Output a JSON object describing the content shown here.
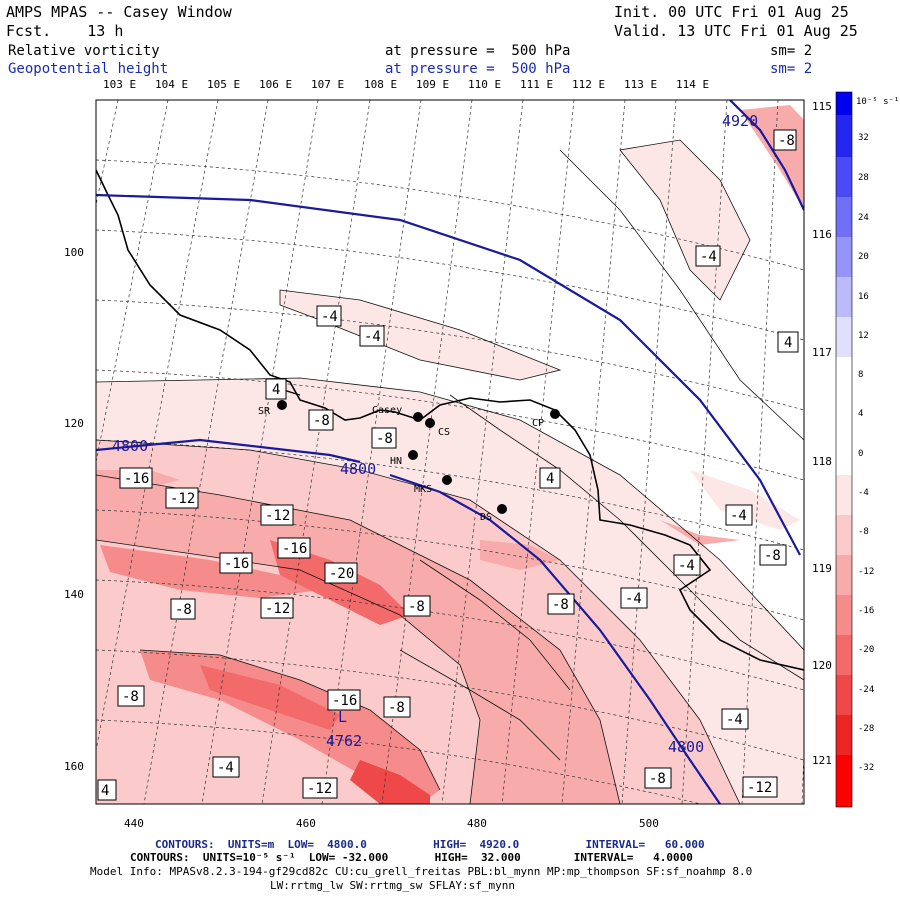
{
  "header": {
    "title": "AMPS MPAS -- Casey Window",
    "fcst": "Fcst.    13 h",
    "init": "Init. 00 UTC Fri 01 Aug 25",
    "valid": "Valid. 13 UTC Fri 01 Aug 25",
    "field1": {
      "name": "Relative vorticity",
      "level": "at pressure =  500 hPa",
      "sm": "sm= 2"
    },
    "field2": {
      "name": "Geopotential height",
      "level": "at pressure =  500 hPa",
      "sm": "sm= 2"
    }
  },
  "longitude_labels": [
    "103 E",
    "104 E",
    "105 E",
    "106 E",
    "107 E",
    "108 E",
    "109 E",
    "110 E",
    "111 E",
    "112 E",
    "113 E",
    "114 E"
  ],
  "right_lon_labels": [
    "115 E",
    "116 E",
    "117 E",
    "118 E",
    "119 E",
    "120 E",
    "121 E"
  ],
  "y_ticks": [
    "100",
    "120",
    "140",
    "160"
  ],
  "x_ticks": [
    "440",
    "460",
    "480",
    "500"
  ],
  "stations": [
    {
      "name": "SR"
    },
    {
      "name": "Casey"
    },
    {
      "name": "CS"
    },
    {
      "name": "HN"
    },
    {
      "name": "MKS"
    },
    {
      "name": "DS"
    },
    {
      "name": "CP"
    }
  ],
  "height_contours": [
    {
      "label": "4920"
    },
    {
      "label": "4800"
    },
    {
      "label": "4800"
    },
    {
      "label": "4800"
    }
  ],
  "low_center": {
    "symbol": "L",
    "value": "4762"
  },
  "vorticity_labels": [
    "-8",
    "-4",
    "-4",
    "-4",
    "4",
    "4",
    "-8",
    "-8",
    "-16",
    "-12",
    "-12",
    "-16",
    "-16",
    "-12",
    "-8",
    "-20",
    "-8",
    "-8",
    "-4",
    "4",
    "-4",
    "-4",
    "-8",
    "-8",
    "-16",
    "-8",
    "-4",
    "-12",
    "-8",
    "-12",
    "-4",
    "-4"
  ],
  "colorbar": {
    "unit": "10⁻⁵ s⁻¹",
    "labels": [
      "32",
      "28",
      "24",
      "20",
      "16",
      "12",
      "8",
      "4",
      "0",
      "-4",
      "-8",
      "-12",
      "-16",
      "-20",
      "-24",
      "-28",
      "-32"
    ],
    "colors": [
      "#0000f0",
      "#2525f2",
      "#4b4bf5",
      "#7070f7",
      "#9595f9",
      "#bbbbfb",
      "#e0e0fd",
      "#ffffff",
      "#ffffff",
      "#fde6e6",
      "#fbcaca",
      "#f8abab",
      "#f58b8b",
      "#f26a6a",
      "#ef4848",
      "#ec2424",
      "#ff0000"
    ]
  },
  "footer": {
    "line1": "CONTOURS:  UNITS=m  LOW=  4800.0          HIGH=  4920.0          INTERVAL=   60.000",
    "line2": "CONTOURS:  UNITS=10⁻⁵ s⁻¹  LOW= -32.000       HIGH=  32.000        INTERVAL=   4.0000",
    "line3": "Model Info: MPASv8.2.3-194-gf29cd82c CU:cu_grell_freitas PBL:bl_mynn MP:mp_thompson SF:sf_noahmp 8.0",
    "line4": "LW:rrtmg_lw SW:rrtmg_sw SFLAY:sf_mynn"
  }
}
